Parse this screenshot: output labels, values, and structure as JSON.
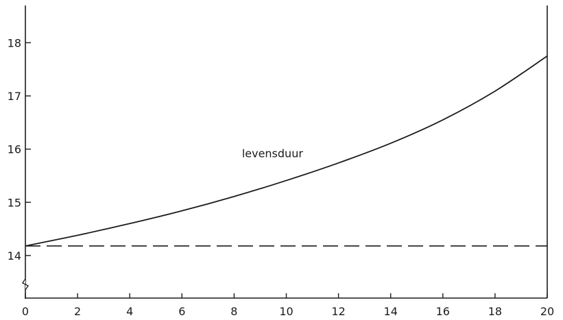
{
  "chart_data": {
    "type": "line",
    "title": "",
    "xlabel": "",
    "ylabel": "",
    "xlim": [
      0,
      20
    ],
    "ylim": [
      13.2,
      18.7
    ],
    "x_ticks": [
      0,
      2,
      4,
      6,
      8,
      10,
      12,
      14,
      16,
      18,
      20
    ],
    "y_ticks": [
      14,
      15,
      16,
      17,
      18
    ],
    "y_axis_break": true,
    "grid": false,
    "series": [
      {
        "name": "levensduur",
        "style": "solid",
        "x": [
          0,
          2,
          4,
          6,
          8,
          10,
          12,
          14,
          16,
          18,
          20
        ],
        "y": [
          14.18,
          14.38,
          14.6,
          14.84,
          15.11,
          15.41,
          15.74,
          16.11,
          16.55,
          17.09,
          17.75
        ]
      },
      {
        "name": "",
        "style": "dashed",
        "x": [
          0,
          20
        ],
        "y": [
          14.18,
          14.18
        ]
      }
    ],
    "annotations": [
      {
        "text": "levensduur",
        "x": 8.3,
        "y": 15.85
      }
    ]
  }
}
